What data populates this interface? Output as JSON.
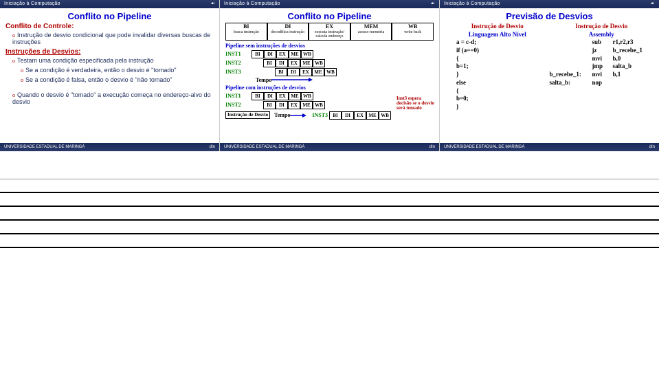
{
  "topbar": {
    "left": "Iniciação à Computação",
    "right": ""
  },
  "bottombar": {
    "left": "UNIVERSIDADE ESTADUAL DE MARINGÁ",
    "right": "dIn"
  },
  "slide1": {
    "title": "Conflito no Pipeline",
    "title_color": "#0000cc",
    "h1": "Conflito de Controle:",
    "l1": "Instrução de desvio condicional que pode invalidar diversas buscas de instruções",
    "h2": "Instruções de Desvios:",
    "l2": "Testam uma condição especificada pela instrução",
    "l3": "Se a condição é verdadeira, então o desvio é \"tomado\"",
    "l4": "Se a condição é falsa, então o desvio é \"não tomado\"",
    "l5": "Quando o desvio é \"tomado\" a execução começa no endereço-alvo do desvio"
  },
  "slide2": {
    "title": "Conflito no Pipeline",
    "title_color": "#0000cc",
    "stages": [
      {
        "code": "BI",
        "desc": "busca instrução"
      },
      {
        "code": "DI",
        "desc": "decodifica instrução"
      },
      {
        "code": "EX",
        "desc": "executa instrução/ calcula endereço"
      },
      {
        "code": "MEM",
        "desc": "acesso memória"
      },
      {
        "code": "WB",
        "desc": "write back"
      }
    ],
    "stage_labels": [
      "BI",
      "DI",
      "EX",
      "ME",
      "WB"
    ],
    "sec1": "Pipeline sem instruções de desvios",
    "sec2": "Pipeline com instruções de desvios",
    "inst": [
      "INST1",
      "INST2",
      "INST3"
    ],
    "tempo": "Tempo",
    "desvio_box": "Instrução de Desvio",
    "note": "Inst3 espera decisão se o desvio será tomado",
    "colors": {
      "stage_border": "#000000",
      "inst": "#008000",
      "section": "#0000cc",
      "note": "#b00000",
      "arrow": "#0000cc"
    }
  },
  "slide3": {
    "title": "Previsão de Desvios",
    "title_color": "#0000cc",
    "left": {
      "head1": "Instrução de Desvio",
      "head2": "Linguagem Alto Nível",
      "code": [
        "a = c-d;",
        "if (a==0)",
        "{",
        "   b=1;",
        "}",
        "else",
        "{",
        "   b=0;",
        "}"
      ]
    },
    "right": {
      "head1": "Instrução de Desvio",
      "head2": "Assembly",
      "code": [
        {
          "l": "",
          "op": "sub",
          "arg": "r1,r2,r3"
        },
        {
          "l": "",
          "op": "jz",
          "arg": "b_recebe_1"
        },
        {
          "l": "",
          "op": "mvi",
          "arg": "b,0"
        },
        {
          "l": "",
          "op": "jmp",
          "arg": "salta_b"
        },
        {
          "l": "b_recebe_1:",
          "op": "mvi",
          "arg": "b,1"
        },
        {
          "l": "salta_b:",
          "op": "nop",
          "arg": ""
        }
      ]
    }
  }
}
